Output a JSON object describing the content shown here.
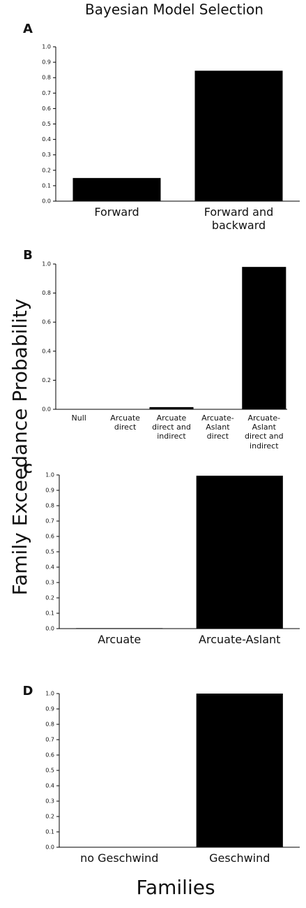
{
  "title": "Bayesian Model Selection",
  "y_label": "Family Exceedance Probability",
  "x_label": "Families",
  "chart_data": [
    {
      "type": "bar",
      "label": "A",
      "categories": [
        "Forward",
        "Forward and backward"
      ],
      "values": [
        0.15,
        0.845
      ],
      "color": "#000000",
      "ylim": [
        0,
        1
      ],
      "yticks": [
        {
          "value": 0,
          "label": "0.0"
        },
        0.1,
        0.2,
        0.3,
        0.4,
        0.5,
        0.6,
        0.7,
        0.8,
        0.9,
        {
          "value": 1,
          "label": "1.0"
        }
      ]
    },
    {
      "type": "bar",
      "label": "B",
      "categories": [
        "Null",
        "Arcuate direct",
        "Arcuate direct and indirect",
        "Arcuate-Aslant direct",
        "Arcuate-Aslant direct and indirect"
      ],
      "values": [
        0,
        0,
        0.015,
        0,
        0.98
      ],
      "color": "#000000",
      "ylim": [
        0,
        1
      ],
      "yticks": [
        {
          "value": 0,
          "label": "0.0"
        },
        0.2,
        0.4,
        0.6,
        0.8,
        {
          "value": 1,
          "label": "1.0"
        }
      ]
    },
    {
      "type": "bar",
      "label": "C",
      "categories": [
        "Arcuate",
        "Arcuate-Aslant"
      ],
      "values": [
        0.003,
        0.995
      ],
      "color": "#000000",
      "ylim": [
        0,
        1
      ],
      "yticks": [
        {
          "value": 0,
          "label": "0.0"
        },
        0.1,
        0.2,
        0.3,
        0.4,
        0.5,
        0.6,
        0.7,
        0.8,
        0.9,
        {
          "value": 1,
          "label": "1.0"
        }
      ]
    },
    {
      "type": "bar",
      "label": "D",
      "categories": [
        "no Geschwind",
        "Geschwind"
      ],
      "values": [
        0,
        1
      ],
      "color": "#000000",
      "ylim": [
        0,
        1
      ],
      "yticks": [
        {
          "value": 0,
          "label": "0.0"
        },
        0.1,
        0.2,
        0.3,
        0.4,
        0.5,
        0.6,
        0.7,
        0.8,
        0.9,
        {
          "value": 1,
          "label": "1.0"
        }
      ]
    }
  ]
}
